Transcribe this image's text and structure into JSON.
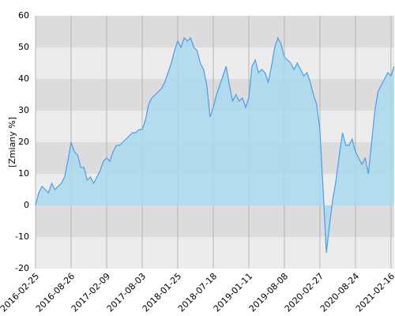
{
  "chart_data": {
    "type": "area",
    "y_label": "[Zmiany %]",
    "categories": [
      "2016-02-25",
      null,
      null,
      null,
      null,
      null,
      null,
      null,
      null,
      null,
      null,
      "2016-08-26",
      null,
      null,
      null,
      null,
      null,
      null,
      null,
      null,
      null,
      null,
      "2017-02-09",
      null,
      null,
      null,
      null,
      null,
      null,
      null,
      null,
      null,
      null,
      "2017-08-03",
      null,
      null,
      null,
      null,
      null,
      null,
      null,
      null,
      null,
      null,
      "2018-01-25",
      null,
      null,
      null,
      null,
      null,
      null,
      null,
      null,
      null,
      null,
      "2018-07-18",
      null,
      null,
      null,
      null,
      null,
      null,
      null,
      null,
      null,
      null,
      "2019-01-11",
      null,
      null,
      null,
      null,
      null,
      null,
      null,
      null,
      null,
      null,
      "2019-08-08",
      null,
      null,
      null,
      null,
      null,
      null,
      null,
      null,
      null,
      null,
      "2020-02-27",
      null,
      null,
      null,
      null,
      null,
      null,
      null,
      null,
      null,
      null,
      "2020-08-24",
      null,
      null,
      null,
      null,
      null,
      null,
      null,
      null,
      null,
      null,
      "2021-02-16",
      null
    ],
    "series": [
      {
        "name": "Zmiany",
        "color": "#4a9de8",
        "fill": "#a9d9ef",
        "values": [
          0,
          4,
          6,
          5,
          4,
          7,
          5,
          6,
          7,
          9,
          14,
          20,
          17,
          16,
          12,
          12,
          8,
          9,
          7,
          9,
          11,
          14,
          15,
          14,
          17,
          19,
          19,
          20,
          21,
          22,
          23,
          23,
          24,
          24,
          27,
          32,
          34,
          35,
          36,
          37,
          39,
          42,
          45,
          49,
          52,
          50,
          53,
          52,
          53,
          50,
          49,
          45,
          43,
          38,
          28,
          31,
          35,
          38,
          41,
          44,
          38,
          33,
          35,
          33,
          34,
          31,
          34,
          44,
          46,
          42,
          43,
          42,
          39,
          44,
          50,
          53,
          51,
          47,
          46,
          45,
          43,
          45,
          43,
          41,
          42,
          39,
          35,
          32,
          24,
          5,
          -15,
          -6,
          2,
          8,
          16,
          23,
          19,
          19,
          21,
          17,
          15,
          13,
          15,
          10,
          20,
          30,
          36,
          38,
          40,
          42,
          41,
          44
        ]
      }
    ],
    "ylim": [
      -20,
      60
    ],
    "yticks": [
      -20,
      -10,
      0,
      10,
      20,
      30,
      40,
      50,
      60
    ],
    "grid": true
  }
}
